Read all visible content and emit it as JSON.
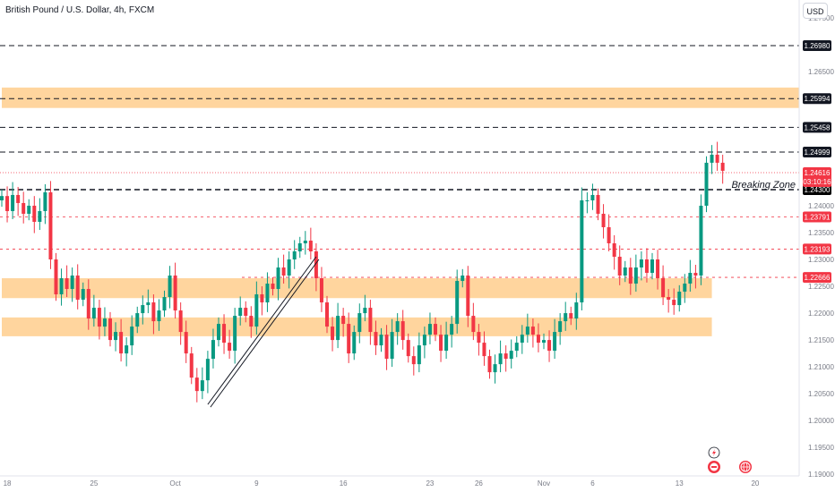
{
  "header": {
    "symbol_title": "British Pound / U.S. Dollar, 4h, FXCM",
    "currency_button": "USD"
  },
  "colors": {
    "up": "#089981",
    "down": "#f23645",
    "zone": "#ffd59e",
    "price_tag": "#f23645",
    "level_tag": "#131722"
  },
  "chart_data": {
    "type": "candlestick",
    "title": "British Pound / U.S. Dollar, 4h, FXCM",
    "ylim": [
      1.1897,
      1.2783
    ],
    "y_ticks": [
      "1.27500",
      "1.26500",
      "1.24000",
      "1.23500",
      "1.23000",
      "1.22500",
      "1.22000",
      "1.21500",
      "1.21000",
      "1.20500",
      "1.20000",
      "1.19500",
      "1.19000"
    ],
    "x_ticks": [
      "18",
      "25",
      "Oct",
      "9",
      "16",
      "23",
      "26",
      "Nov",
      "6",
      "13",
      "20"
    ],
    "grid": false,
    "path": [
      1.2418,
      1.239,
      1.242,
      1.2405,
      1.2385,
      1.24,
      1.237,
      1.239,
      1.2425,
      1.23,
      1.2235,
      1.2265,
      1.2245,
      1.227,
      1.2225,
      1.2245,
      1.219,
      1.221,
      1.2175,
      1.219,
      1.215,
      1.2165,
      1.2125,
      1.214,
      1.2175,
      1.22,
      1.2215,
      1.222,
      1.2185,
      1.2205,
      1.223,
      1.227,
      1.2205,
      1.2165,
      1.2125,
      1.208,
      1.2055,
      1.2075,
      1.2115,
      1.215,
      1.218,
      1.2145,
      1.213,
      1.2195,
      1.221,
      1.2195,
      1.2175,
      1.2235,
      1.222,
      1.2255,
      1.2245,
      1.2285,
      1.227,
      1.23,
      1.2315,
      1.233,
      1.2335,
      1.2315,
      1.2265,
      1.222,
      1.2175,
      1.215,
      1.2195,
      1.218,
      1.2125,
      1.2165,
      1.22,
      1.221,
      1.2165,
      1.214,
      1.216,
      1.2115,
      1.2165,
      1.2185,
      1.215,
      1.212,
      1.2105,
      1.214,
      1.216,
      1.218,
      1.216,
      1.213,
      1.216,
      1.218,
      1.226,
      1.227,
      1.2195,
      1.2165,
      1.2145,
      1.212,
      1.209,
      1.2105,
      1.2125,
      1.2115,
      1.213,
      1.2145,
      1.216,
      1.2175,
      1.216,
      1.2145,
      1.215,
      1.213,
      1.2165,
      1.2185,
      1.22,
      1.219,
      1.222,
      1.241,
      1.241,
      1.242,
      1.2385,
      1.236,
      1.233,
      1.2305,
      1.227,
      1.2285,
      1.2255,
      1.2285,
      1.23,
      1.2275,
      1.23,
      1.2265,
      1.223,
      1.2225,
      1.2215,
      1.224,
      1.2255,
      1.2275,
      1.227,
      1.24,
      1.248,
      1.2495,
      1.248,
      1.2465
    ],
    "levels": [
      {
        "price": "1.26980",
        "style": "dash"
      },
      {
        "price": "1.25994",
        "style": "dash"
      },
      {
        "price": "1.25458",
        "style": "dash"
      },
      {
        "price": "1.24999",
        "style": "dash"
      },
      {
        "price": "1.24300",
        "style": "dash-bold"
      },
      {
        "price": "1.23791",
        "style": "red-dash"
      },
      {
        "price": "1.23193",
        "style": "red-dash"
      },
      {
        "price": "1.22666",
        "style": "red-dash"
      }
    ],
    "current_price": "1.24616",
    "countdown": "03:10:16",
    "zones": [
      {
        "y_low": 1.2582,
        "y_high": 1.262,
        "x_start": 0,
        "x_end": 131
      },
      {
        "y_low": 1.2228,
        "y_high": 1.2265,
        "x_start": 0,
        "x_end": 131
      },
      {
        "y_low": 1.2157,
        "y_high": 1.2192,
        "x_start": 0,
        "x_end": 131
      }
    ],
    "trendline": {
      "x1": 38,
      "y1": 1.203,
      "x2": 58,
      "y2": 1.2305
    },
    "annotation": "Breaking Zone"
  }
}
